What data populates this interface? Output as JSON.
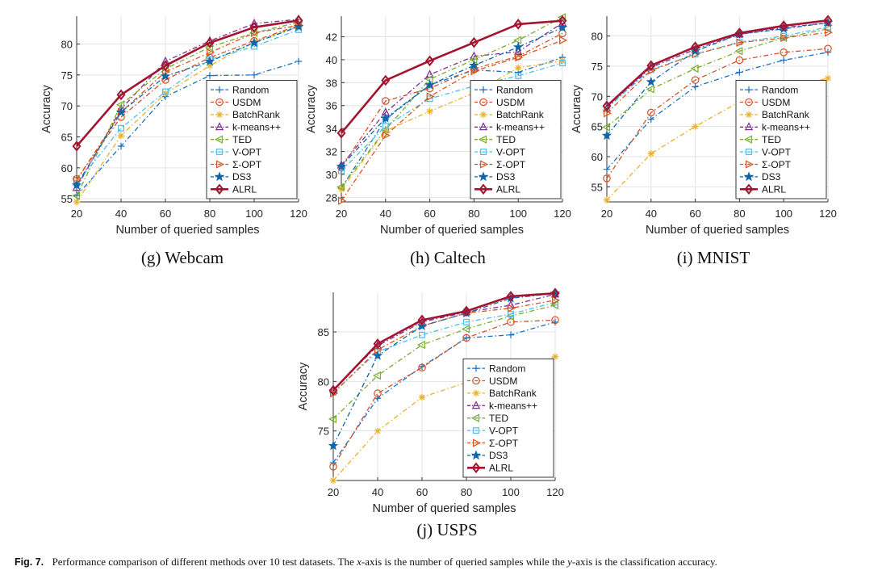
{
  "series_styles": [
    {
      "name": "Random",
      "color": "#1a6fc4",
      "marker": "plus",
      "dash": "6,3,1.5,3",
      "width": 1.3
    },
    {
      "name": "USDM",
      "color": "#d0522a",
      "marker": "circle",
      "dash": "6,3,1.5,3",
      "width": 1.3
    },
    {
      "name": "BatchRank",
      "color": "#ecb12a",
      "marker": "asterisk",
      "dash": "6,3,1.5,3",
      "width": 1.3
    },
    {
      "name": "k-means++",
      "color": "#7b2d8e",
      "marker": "triUp",
      "dash": "6,3,1.5,3",
      "width": 1.3
    },
    {
      "name": "TED",
      "color": "#77ac30",
      "marker": "triLeft",
      "dash": "6,3,1.5,3",
      "width": 1.3
    },
    {
      "name": "V-OPT",
      "color": "#4cbeee",
      "marker": "square",
      "dash": "6,3,1.5,3",
      "width": 1.3
    },
    {
      "name": "Σ-OPT",
      "color": "#d95319",
      "marker": "triRight",
      "dash": "6,3,1.5,3",
      "width": 1.3
    },
    {
      "name": "DS3",
      "color": "#1166a8",
      "marker": "star",
      "dash": "6,3,1.5,3",
      "width": 1.3
    },
    {
      "name": "ALRL",
      "color": "#a2142f",
      "marker": "diamond",
      "dash": "",
      "width": 2.6
    }
  ],
  "chart_data": [
    {
      "type": "line",
      "subcaption": "(g) Webcam",
      "xlabel": "Number of queried samples",
      "ylabel": "Accuracy",
      "x": [
        20,
        40,
        60,
        80,
        100,
        120
      ],
      "xlim": [
        20,
        120
      ],
      "ylim": [
        54.5,
        84.5
      ],
      "yticks": [
        55,
        60,
        65,
        70,
        75,
        80
      ],
      "legend_position": "bottom-right",
      "series": [
        {
          "name": "Random",
          "values": [
            55.5,
            63.5,
            71.5,
            74.9,
            75.0,
            77.2
          ]
        },
        {
          "name": "USDM",
          "values": [
            58.2,
            68.2,
            74.2,
            77.8,
            80.5,
            83.0
          ]
        },
        {
          "name": "BatchRank",
          "values": [
            54.5,
            65.2,
            72.0,
            76.5,
            80.4,
            82.8
          ]
        },
        {
          "name": "k-means++",
          "values": [
            56.8,
            69.5,
            77.2,
            80.5,
            83.3,
            84.0
          ]
        },
        {
          "name": "TED",
          "values": [
            55.5,
            70.2,
            76.0,
            79.5,
            81.8,
            83.5
          ]
        },
        {
          "name": "V-OPT",
          "values": [
            57.5,
            66.4,
            72.3,
            77.5,
            79.6,
            82.3
          ]
        },
        {
          "name": "Σ-OPT",
          "values": [
            58.0,
            69.0,
            75.5,
            78.6,
            81.8,
            83.0
          ]
        },
        {
          "name": "DS3",
          "values": [
            57.2,
            69.0,
            74.8,
            77.2,
            80.2,
            82.8
          ]
        },
        {
          "name": "ALRL",
          "values": [
            63.5,
            71.8,
            76.5,
            80.2,
            82.7,
            83.8
          ]
        }
      ]
    },
    {
      "type": "line",
      "subcaption": "(h) Caltech",
      "xlabel": "Number of queried samples",
      "ylabel": "Accuracy",
      "x": [
        20,
        40,
        60,
        80,
        100,
        120
      ],
      "xlim": [
        20,
        120
      ],
      "ylim": [
        27.6,
        43.8
      ],
      "yticks": [
        28,
        30,
        32,
        34,
        36,
        38,
        40,
        42
      ],
      "legend_position": "bottom-right",
      "series": [
        {
          "name": "Random",
          "values": [
            28.8,
            34.8,
            37.8,
            39.1,
            38.9,
            40.2
          ]
        },
        {
          "name": "USDM",
          "values": [
            30.6,
            36.4,
            37.5,
            39.2,
            40.3,
            42.3
          ]
        },
        {
          "name": "BatchRank",
          "values": [
            28.7,
            33.8,
            35.5,
            37.1,
            39.3,
            39.9
          ]
        },
        {
          "name": "k-means++",
          "values": [
            30.8,
            35.4,
            38.7,
            40.3,
            40.7,
            43.2
          ]
        },
        {
          "name": "TED",
          "values": [
            28.9,
            33.9,
            38.3,
            40.0,
            41.7,
            43.7
          ]
        },
        {
          "name": "V-OPT",
          "values": [
            30.3,
            34.2,
            36.6,
            37.7,
            38.6,
            39.7
          ]
        },
        {
          "name": "Σ-OPT",
          "values": [
            27.7,
            33.4,
            36.8,
            39.0,
            40.2,
            41.7
          ]
        },
        {
          "name": "DS3",
          "values": [
            30.7,
            34.9,
            37.8,
            39.5,
            41.1,
            42.8
          ]
        },
        {
          "name": "ALRL",
          "values": [
            33.6,
            38.2,
            39.9,
            41.5,
            43.1,
            43.4
          ]
        }
      ]
    },
    {
      "type": "line",
      "subcaption": "(i) MNIST",
      "xlabel": "Number of queried samples",
      "ylabel": "Accuracy",
      "x": [
        20,
        40,
        60,
        80,
        100,
        120
      ],
      "xlim": [
        20,
        120
      ],
      "ylim": [
        52.5,
        83.3
      ],
      "yticks": [
        55,
        60,
        65,
        70,
        75,
        80
      ],
      "legend_position": "bottom-right",
      "series": [
        {
          "name": "Random",
          "values": [
            57.9,
            66.2,
            71.6,
            74.0,
            76.0,
            77.3
          ]
        },
        {
          "name": "USDM",
          "values": [
            56.4,
            67.3,
            72.7,
            76.0,
            77.3,
            77.9
          ]
        },
        {
          "name": "BatchRank",
          "values": [
            52.8,
            60.5,
            65.0,
            69.1,
            71.2,
            73.0
          ]
        },
        {
          "name": "k-means++",
          "values": [
            68.0,
            74.8,
            77.8,
            80.3,
            81.4,
            82.2
          ]
        },
        {
          "name": "TED",
          "values": [
            64.9,
            71.2,
            74.6,
            77.5,
            79.7,
            81.2
          ]
        },
        {
          "name": "V-OPT",
          "values": [
            68.2,
            74.4,
            77.0,
            79.0,
            80.0,
            81.5
          ]
        },
        {
          "name": "Σ-OPT",
          "values": [
            67.2,
            74.3,
            77.0,
            78.9,
            79.7,
            80.6
          ]
        },
        {
          "name": "DS3",
          "values": [
            63.5,
            72.4,
            77.5,
            80.3,
            81.2,
            82.2
          ]
        },
        {
          "name": "ALRL",
          "values": [
            68.4,
            75.1,
            78.2,
            80.5,
            81.7,
            82.6
          ]
        }
      ]
    },
    {
      "type": "line",
      "subcaption": "(j) USPS",
      "xlabel": "Number of queried samples",
      "ylabel": "Accuracy",
      "x": [
        20,
        40,
        60,
        80,
        100,
        120
      ],
      "xlim": [
        20,
        120
      ],
      "ylim": [
        70.0,
        89.0
      ],
      "yticks": [
        75,
        80,
        85
      ],
      "legend_position": "bottom-right",
      "series": [
        {
          "name": "Random",
          "values": [
            71.8,
            78.3,
            81.5,
            84.4,
            84.7,
            86.0
          ]
        },
        {
          "name": "USDM",
          "values": [
            71.4,
            78.8,
            81.4,
            84.4,
            86.0,
            86.2
          ]
        },
        {
          "name": "BatchRank",
          "values": [
            70.0,
            75.0,
            78.4,
            79.9,
            81.0,
            82.5
          ]
        },
        {
          "name": "k-means++",
          "values": [
            79.2,
            83.6,
            86.0,
            87.0,
            87.7,
            88.8
          ]
        },
        {
          "name": "TED",
          "values": [
            76.2,
            80.6,
            83.7,
            85.3,
            86.6,
            87.7
          ]
        },
        {
          "name": "V-OPT",
          "values": [
            78.9,
            83.0,
            84.7,
            86.0,
            86.8,
            88.0
          ]
        },
        {
          "name": "Σ-OPT",
          "values": [
            78.8,
            83.2,
            85.6,
            86.9,
            87.4,
            88.2
          ]
        },
        {
          "name": "DS3",
          "values": [
            73.5,
            82.6,
            85.6,
            86.9,
            88.4,
            88.9
          ]
        },
        {
          "name": "ALRL",
          "values": [
            79.1,
            83.8,
            86.2,
            87.1,
            88.6,
            88.9
          ]
        }
      ]
    }
  ],
  "caption": {
    "label": "Fig. 7.",
    "text_before": "Performance comparison of different methods over 10 test datasets. The ",
    "x_italic": "x",
    "text_middle": "-axis is the number of queried samples while the ",
    "y_italic": "y",
    "text_after": "-axis is the classification accuracy."
  }
}
